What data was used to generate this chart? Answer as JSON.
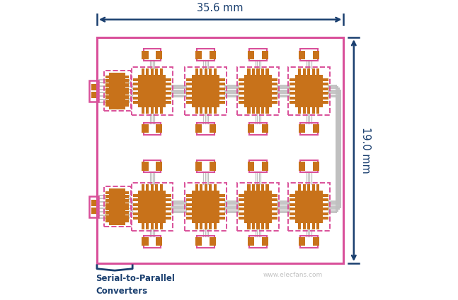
{
  "fig_width": 6.47,
  "fig_height": 4.25,
  "dpi": 100,
  "bg_color": "#ffffff",
  "board_bg": "#ffffff",
  "board_border_color": "#d9509a",
  "copper_color": "#c8721a",
  "trace_color": "#c0c0c0",
  "pink_color": "#d9509a",
  "arrow_color": "#1a3f6f",
  "dimension_35_6": "35.6 mm",
  "dimension_19_0": "19.0 mm",
  "label_converters": "Serial-to-Parallel\nConverters",
  "bx0": 0.045,
  "by0": 0.1,
  "bx1": 0.895,
  "by1": 0.88
}
